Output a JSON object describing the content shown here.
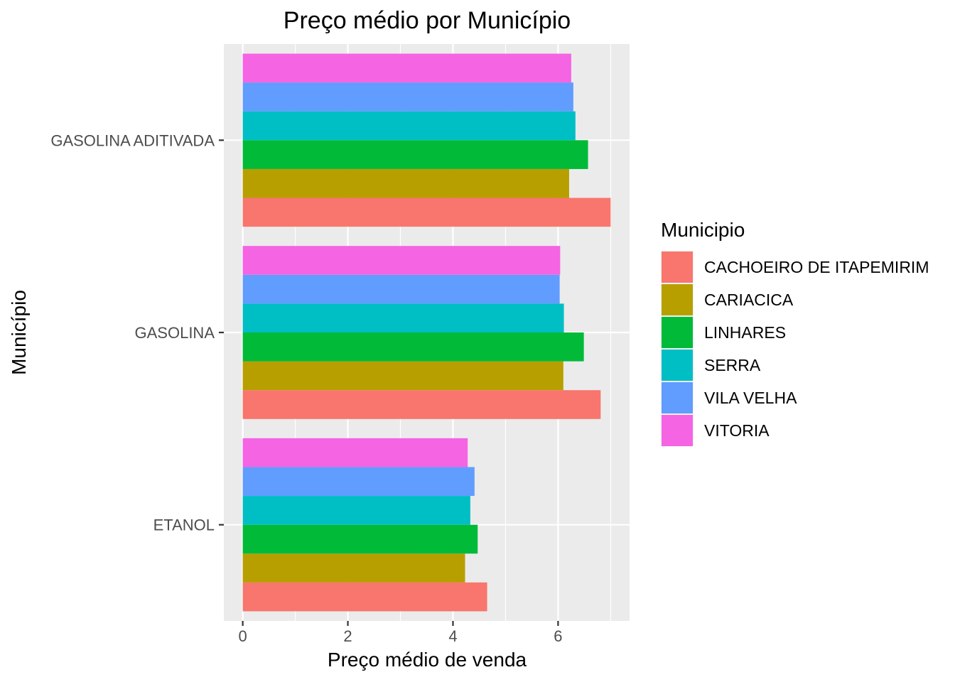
{
  "chart_data": {
    "type": "bar",
    "orientation": "horizontal",
    "title": "Preço médio por Município",
    "xlabel": "Preço médio de venda",
    "ylabel": "Município",
    "xlim": [
      -0.36,
      7.36
    ],
    "x_ticks": [
      0,
      2,
      4,
      6
    ],
    "categories": [
      "ETANOL",
      "GASOLINA",
      "GASOLINA ADITIVADA"
    ],
    "legend_title": "Municipio",
    "legend_position": "right",
    "grid": true,
    "series": [
      {
        "name": "CACHOEIRO DE ITAPEMIRIM",
        "color": "#F8766D",
        "values": [
          4.65,
          6.81,
          7.0
        ]
      },
      {
        "name": "CARIACICA",
        "color": "#B79F00",
        "values": [
          4.23,
          6.1,
          6.21
        ]
      },
      {
        "name": "LINHARES",
        "color": "#00BA38",
        "values": [
          4.47,
          6.49,
          6.57
        ]
      },
      {
        "name": "SERRA",
        "color": "#00BFC4",
        "values": [
          4.33,
          6.11,
          6.33
        ]
      },
      {
        "name": "VILA VELHA",
        "color": "#619CFF",
        "values": [
          4.41,
          6.03,
          6.29
        ]
      },
      {
        "name": "VITORIA",
        "color": "#F564E3",
        "values": [
          4.28,
          6.04,
          6.25
        ]
      }
    ]
  }
}
